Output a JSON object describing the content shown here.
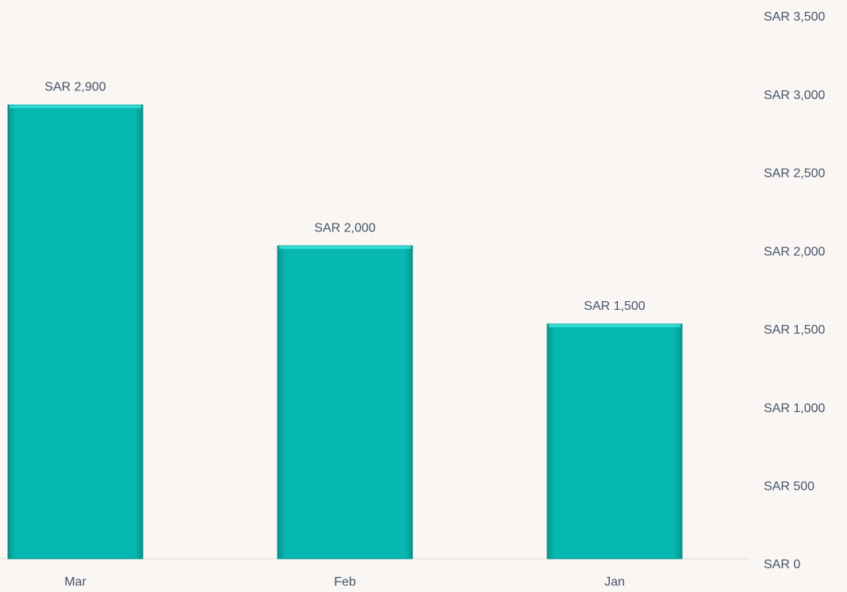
{
  "chart_data": {
    "type": "bar",
    "categories": [
      "Mar",
      "Feb",
      "Jan"
    ],
    "values": [
      2900,
      2000,
      1500
    ],
    "value_labels": [
      "SAR 2,900",
      "SAR 2,000",
      "SAR 1,500"
    ],
    "color": "#06b8b0",
    "ylim": [
      0,
      3500
    ],
    "yticks": [
      {
        "value": 0,
        "label": "SAR 0"
      },
      {
        "value": 500,
        "label": "SAR 500"
      },
      {
        "value": 1000,
        "label": "SAR 1,000"
      },
      {
        "value": 1500,
        "label": "SAR 1,500"
      },
      {
        "value": 2000,
        "label": "SAR 2,000"
      },
      {
        "value": 2500,
        "label": "SAR 2,500"
      },
      {
        "value": 3000,
        "label": "SAR 3,000"
      },
      {
        "value": 3500,
        "label": "SAR 3,500"
      }
    ],
    "grid": false,
    "y_axis_side": "right"
  }
}
